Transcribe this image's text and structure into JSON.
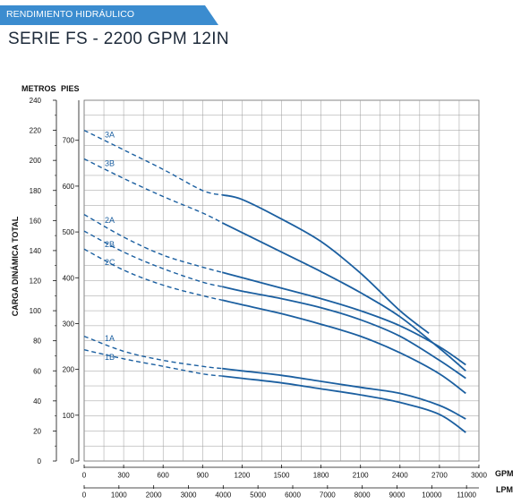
{
  "header": {
    "banner": "RENDIMIENTO HIDRÁULICO",
    "title": "SERIE FS - 2200 GPM 12IN"
  },
  "colors": {
    "banner": "#3b8ccf",
    "curve": "#1b5fa0",
    "grid": "#9a9a9a"
  },
  "chart_data": {
    "type": "line",
    "ylabel": "CARGA DINÁMICA TOTAL",
    "y_units": [
      "METROS",
      "PIES"
    ],
    "x_units": [
      "GPM",
      "LPM"
    ],
    "grid": true,
    "xlim_gpm": [
      0,
      3000
    ],
    "ylim_m": [
      0,
      240
    ],
    "gpm_ticks": [
      0,
      300,
      600,
      900,
      1200,
      1500,
      1800,
      2100,
      2400,
      2700,
      3000
    ],
    "lpm_ticks": [
      0,
      1000,
      2000,
      3000,
      4000,
      5000,
      6000,
      7000,
      8000,
      9000,
      10000,
      11000
    ],
    "metros_ticks": [
      0,
      20,
      40,
      60,
      80,
      100,
      120,
      140,
      160,
      180,
      200,
      220,
      240
    ],
    "pies_ticks": [
      0,
      100,
      200,
      300,
      400,
      500,
      600,
      700
    ],
    "dashed_until_gpm": 1050,
    "series": [
      {
        "name": "3A",
        "gpm": [
          0,
          300,
          600,
          900,
          1200,
          1500,
          1800,
          2100,
          2400,
          2620
        ],
        "metros": [
          220,
          207,
          194,
          180,
          174,
          161,
          146,
          125,
          100,
          85
        ]
      },
      {
        "name": "3B",
        "gpm": [
          0,
          300,
          600,
          900,
          1200,
          1500,
          1800,
          2100,
          2400,
          2700,
          2900
        ],
        "metros": [
          201,
          188,
          176,
          165,
          152,
          139,
          126,
          112,
          96,
          75,
          60
        ]
      },
      {
        "name": "2A",
        "gpm": [
          0,
          300,
          600,
          900,
          1200,
          1500,
          1800,
          2100,
          2400,
          2700,
          2900
        ],
        "metros": [
          164,
          149,
          137,
          129,
          122,
          115,
          108,
          100,
          90,
          76,
          64
        ]
      },
      {
        "name": "2B",
        "gpm": [
          0,
          300,
          600,
          900,
          1200,
          1500,
          1800,
          2100,
          2400,
          2700,
          2900
        ],
        "metros": [
          153,
          139,
          128,
          119,
          113,
          108,
          102,
          94,
          83,
          67,
          55
        ]
      },
      {
        "name": "2C",
        "gpm": [
          0,
          300,
          600,
          900,
          1200,
          1500,
          1800,
          2100,
          2400,
          2700,
          2900
        ],
        "metros": [
          141,
          127,
          117,
          110,
          104,
          98,
          91,
          83,
          72,
          58,
          45
        ]
      },
      {
        "name": "1A",
        "gpm": [
          0,
          300,
          600,
          900,
          1200,
          1500,
          1800,
          2100,
          2400,
          2700,
          2900
        ],
        "metros": [
          83,
          73,
          67,
          63,
          60,
          57,
          53,
          49,
          45,
          37,
          28
        ]
      },
      {
        "name": "1B",
        "gpm": [
          0,
          300,
          600,
          900,
          1200,
          1500,
          1800,
          2100,
          2400,
          2700,
          2900
        ],
        "metros": [
          74,
          68,
          63,
          58,
          55,
          52,
          48,
          44,
          39,
          31,
          19
        ]
      }
    ]
  }
}
